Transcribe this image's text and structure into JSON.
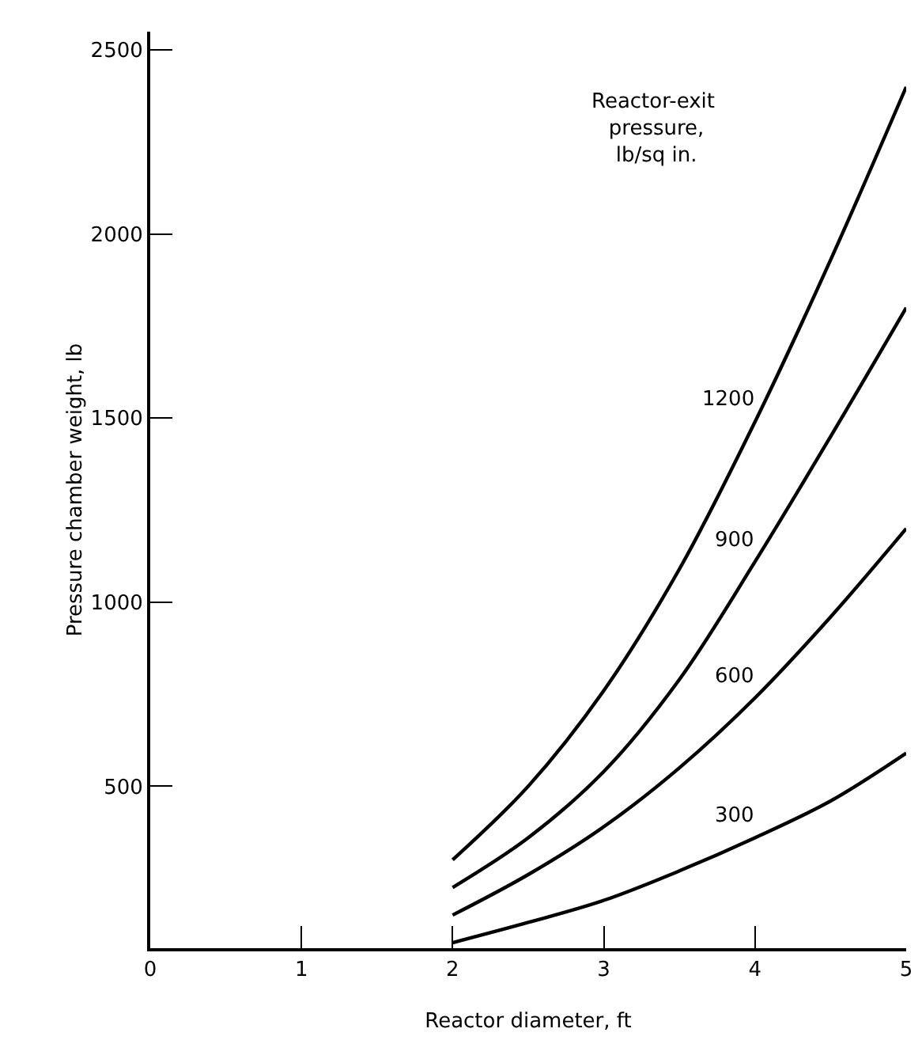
{
  "chart_data": {
    "type": "line",
    "xlabel": "Reactor diameter, ft",
    "ylabel": "Pressure chamber weight, lb",
    "legend_title": "Reactor-exit pressure, lb/sq in.",
    "x": [
      2,
      2.5,
      3,
      3.5,
      4,
      4.5,
      5
    ],
    "series": [
      {
        "name": "1200",
        "color": "#000000",
        "values": [
          300,
          500,
          760,
          1090,
          1490,
          1930,
          2400
        ]
      },
      {
        "name": "900",
        "color": "#000000",
        "values": [
          225,
          360,
          540,
          790,
          1110,
          1450,
          1800
        ]
      },
      {
        "name": "600",
        "color": "#000000",
        "values": [
          150,
          260,
          390,
          550,
          740,
          960,
          1200
        ]
      },
      {
        "name": "300",
        "color": "#000000",
        "values": [
          75,
          130,
          190,
          270,
          360,
          460,
          590
        ]
      }
    ],
    "xlim": [
      0,
      5
    ],
    "xticks": [
      0,
      1,
      2,
      3,
      4,
      5
    ],
    "ylim": [
      60,
      2550
    ],
    "yticks": [
      500,
      1000,
      1500,
      2000,
      2500
    ],
    "grid": false,
    "legend": false,
    "marker": "none",
    "line_style": "solid"
  }
}
